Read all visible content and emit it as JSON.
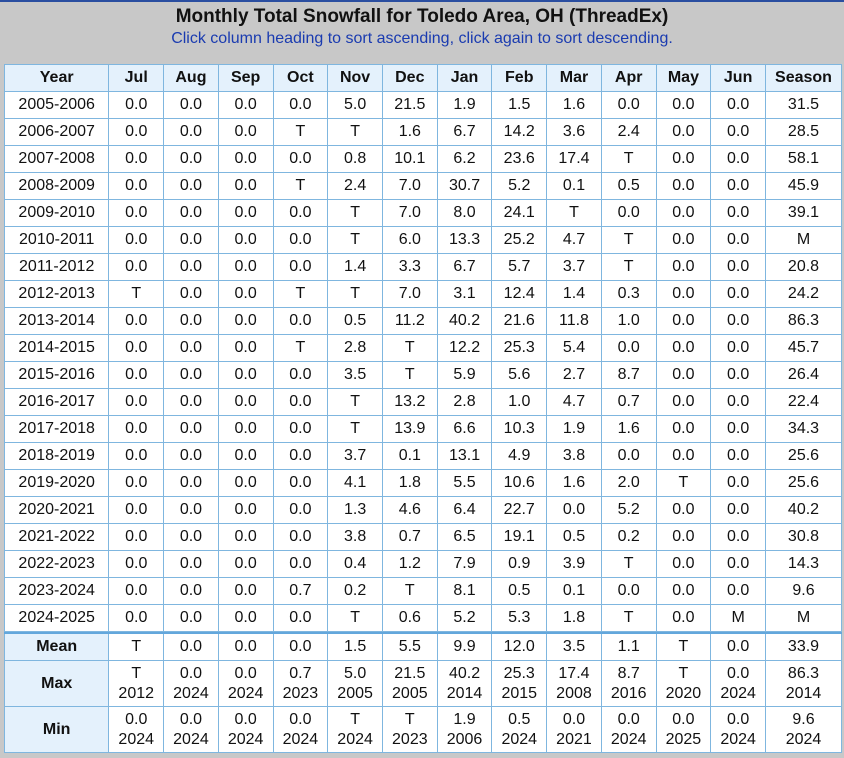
{
  "title": "Monthly Total Snowfall for Toledo Area, OH (ThreadEx)",
  "subtitle": "Click column heading to sort ascending, click again to sort descending.",
  "columns": [
    "Year",
    "Jul",
    "Aug",
    "Sep",
    "Oct",
    "Nov",
    "Dec",
    "Jan",
    "Feb",
    "Mar",
    "Apr",
    "May",
    "Jun",
    "Season"
  ],
  "rows": [
    {
      "year": "2005-2006",
      "values": [
        "0.0",
        "0.0",
        "0.0",
        "0.0",
        "5.0",
        "21.5",
        "1.9",
        "1.5",
        "1.6",
        "0.0",
        "0.0",
        "0.0",
        "31.5"
      ]
    },
    {
      "year": "2006-2007",
      "values": [
        "0.0",
        "0.0",
        "0.0",
        "T",
        "T",
        "1.6",
        "6.7",
        "14.2",
        "3.6",
        "2.4",
        "0.0",
        "0.0",
        "28.5"
      ]
    },
    {
      "year": "2007-2008",
      "values": [
        "0.0",
        "0.0",
        "0.0",
        "0.0",
        "0.8",
        "10.1",
        "6.2",
        "23.6",
        "17.4",
        "T",
        "0.0",
        "0.0",
        "58.1"
      ]
    },
    {
      "year": "2008-2009",
      "values": [
        "0.0",
        "0.0",
        "0.0",
        "T",
        "2.4",
        "7.0",
        "30.7",
        "5.2",
        "0.1",
        "0.5",
        "0.0",
        "0.0",
        "45.9"
      ]
    },
    {
      "year": "2009-2010",
      "values": [
        "0.0",
        "0.0",
        "0.0",
        "0.0",
        "T",
        "7.0",
        "8.0",
        "24.1",
        "T",
        "0.0",
        "0.0",
        "0.0",
        "39.1"
      ]
    },
    {
      "year": "2010-2011",
      "values": [
        "0.0",
        "0.0",
        "0.0",
        "0.0",
        "T",
        "6.0",
        "13.3",
        "25.2",
        "4.7",
        "T",
        "0.0",
        "0.0",
        "M"
      ]
    },
    {
      "year": "2011-2012",
      "values": [
        "0.0",
        "0.0",
        "0.0",
        "0.0",
        "1.4",
        "3.3",
        "6.7",
        "5.7",
        "3.7",
        "T",
        "0.0",
        "0.0",
        "20.8"
      ]
    },
    {
      "year": "2012-2013",
      "values": [
        "T",
        "0.0",
        "0.0",
        "T",
        "T",
        "7.0",
        "3.1",
        "12.4",
        "1.4",
        "0.3",
        "0.0",
        "0.0",
        "24.2"
      ]
    },
    {
      "year": "2013-2014",
      "values": [
        "0.0",
        "0.0",
        "0.0",
        "0.0",
        "0.5",
        "11.2",
        "40.2",
        "21.6",
        "11.8",
        "1.0",
        "0.0",
        "0.0",
        "86.3"
      ]
    },
    {
      "year": "2014-2015",
      "values": [
        "0.0",
        "0.0",
        "0.0",
        "T",
        "2.8",
        "T",
        "12.2",
        "25.3",
        "5.4",
        "0.0",
        "0.0",
        "0.0",
        "45.7"
      ]
    },
    {
      "year": "2015-2016",
      "values": [
        "0.0",
        "0.0",
        "0.0",
        "0.0",
        "3.5",
        "T",
        "5.9",
        "5.6",
        "2.7",
        "8.7",
        "0.0",
        "0.0",
        "26.4"
      ]
    },
    {
      "year": "2016-2017",
      "values": [
        "0.0",
        "0.0",
        "0.0",
        "0.0",
        "T",
        "13.2",
        "2.8",
        "1.0",
        "4.7",
        "0.7",
        "0.0",
        "0.0",
        "22.4"
      ]
    },
    {
      "year": "2017-2018",
      "values": [
        "0.0",
        "0.0",
        "0.0",
        "0.0",
        "T",
        "13.9",
        "6.6",
        "10.3",
        "1.9",
        "1.6",
        "0.0",
        "0.0",
        "34.3"
      ]
    },
    {
      "year": "2018-2019",
      "values": [
        "0.0",
        "0.0",
        "0.0",
        "0.0",
        "3.7",
        "0.1",
        "13.1",
        "4.9",
        "3.8",
        "0.0",
        "0.0",
        "0.0",
        "25.6"
      ]
    },
    {
      "year": "2019-2020",
      "values": [
        "0.0",
        "0.0",
        "0.0",
        "0.0",
        "4.1",
        "1.8",
        "5.5",
        "10.6",
        "1.6",
        "2.0",
        "T",
        "0.0",
        "25.6"
      ]
    },
    {
      "year": "2020-2021",
      "values": [
        "0.0",
        "0.0",
        "0.0",
        "0.0",
        "1.3",
        "4.6",
        "6.4",
        "22.7",
        "0.0",
        "5.2",
        "0.0",
        "0.0",
        "40.2"
      ]
    },
    {
      "year": "2021-2022",
      "values": [
        "0.0",
        "0.0",
        "0.0",
        "0.0",
        "3.8",
        "0.7",
        "6.5",
        "19.1",
        "0.5",
        "0.2",
        "0.0",
        "0.0",
        "30.8"
      ]
    },
    {
      "year": "2022-2023",
      "values": [
        "0.0",
        "0.0",
        "0.0",
        "0.0",
        "0.4",
        "1.2",
        "7.9",
        "0.9",
        "3.9",
        "T",
        "0.0",
        "0.0",
        "14.3"
      ]
    },
    {
      "year": "2023-2024",
      "values": [
        "0.0",
        "0.0",
        "0.0",
        "0.7",
        "0.2",
        "T",
        "8.1",
        "0.5",
        "0.1",
        "0.0",
        "0.0",
        "0.0",
        "9.6"
      ]
    },
    {
      "year": "2024-2025",
      "values": [
        "0.0",
        "0.0",
        "0.0",
        "0.0",
        "T",
        "0.6",
        "5.2",
        "5.3",
        "1.8",
        "T",
        "0.0",
        "M",
        "M"
      ]
    }
  ],
  "stats": {
    "mean": {
      "label": "Mean",
      "values": [
        "T",
        "0.0",
        "0.0",
        "0.0",
        "1.5",
        "5.5",
        "9.9",
        "12.0",
        "3.5",
        "1.1",
        "T",
        "0.0",
        "33.9"
      ]
    },
    "max": {
      "label": "Max",
      "values": [
        [
          "T",
          "2012"
        ],
        [
          "0.0",
          "2024"
        ],
        [
          "0.0",
          "2024"
        ],
        [
          "0.7",
          "2023"
        ],
        [
          "5.0",
          "2005"
        ],
        [
          "21.5",
          "2005"
        ],
        [
          "40.2",
          "2014"
        ],
        [
          "25.3",
          "2015"
        ],
        [
          "17.4",
          "2008"
        ],
        [
          "8.7",
          "2016"
        ],
        [
          "T",
          "2020"
        ],
        [
          "0.0",
          "2024"
        ],
        [
          "86.3",
          "2014"
        ]
      ]
    },
    "min": {
      "label": "Min",
      "values": [
        [
          "0.0",
          "2024"
        ],
        [
          "0.0",
          "2024"
        ],
        [
          "0.0",
          "2024"
        ],
        [
          "0.0",
          "2024"
        ],
        [
          "T",
          "2024"
        ],
        [
          "T",
          "2023"
        ],
        [
          "1.9",
          "2006"
        ],
        [
          "0.5",
          "2024"
        ],
        [
          "0.0",
          "2021"
        ],
        [
          "0.0",
          "2024"
        ],
        [
          "0.0",
          "2025"
        ],
        [
          "0.0",
          "2024"
        ],
        [
          "9.6",
          "2024"
        ]
      ]
    }
  }
}
